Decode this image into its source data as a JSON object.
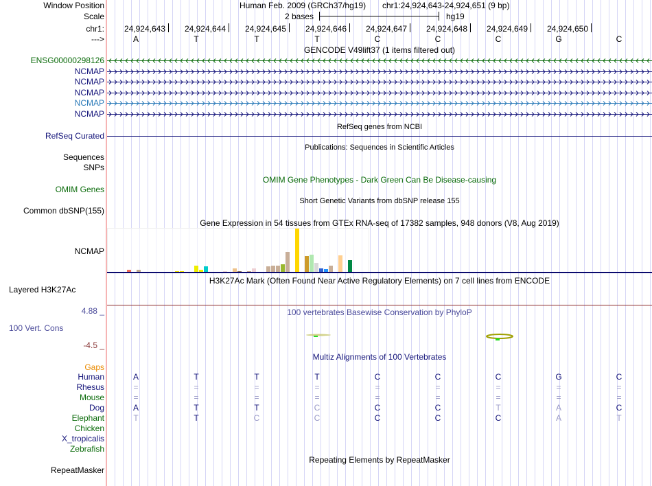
{
  "header": {
    "window_position_label": "Window Position",
    "assembly": "Human Feb. 2009 (GRCh37/hg19)",
    "position": "chr1:24,924,643-24,924,651 (9 bp)",
    "scale_label": "Scale",
    "scale_text": "2 bases",
    "scale_db": "hg19",
    "chrom_label": "chr1:",
    "strand_label": "--->",
    "coordinates": [
      "24,924,643",
      "24,924,644",
      "24,924,645",
      "24,924,646",
      "24,924,647",
      "24,924,648",
      "24,924,649",
      "24,924,650"
    ],
    "bases": [
      "A",
      "T",
      "T",
      "T",
      "C",
      "C",
      "C",
      "G",
      "C"
    ]
  },
  "gencode": {
    "title": "GENCODE V49lift37 (1 items filtered out)",
    "items": [
      {
        "label": "ENSG00000298126",
        "strand": "-",
        "color": "#0b6b0b"
      },
      {
        "label": "NCMAP",
        "strand": "+",
        "color": "#14147a"
      },
      {
        "label": "NCMAP",
        "strand": "+",
        "color": "#14147a"
      },
      {
        "label": "NCMAP",
        "strand": "+",
        "color": "#14147a"
      },
      {
        "label": "NCMAP",
        "strand": "+",
        "color": "#2a7ab8"
      },
      {
        "label": "NCMAP",
        "strand": "+",
        "color": "#14147a"
      }
    ]
  },
  "refseq": {
    "title": "RefSeq genes from NCBI",
    "label": "RefSeq Curated"
  },
  "publications": {
    "title": "Publications: Sequences in Scientific Articles",
    "label1": "Sequences",
    "label2": "SNPs"
  },
  "omim": {
    "title": "OMIM Gene Phenotypes - Dark Green Can Be Disease-causing",
    "label": "OMIM Genes"
  },
  "dbsnp": {
    "title": "Short Genetic Variants from dbSNP release 155",
    "label": "Common dbSNP(155)"
  },
  "gtex": {
    "title": "Gene Expression in 54 tissues from GTEx RNA-seq of 17382 samples, 948 donors (V8, Aug 2019)",
    "label": "NCMAP"
  },
  "h3k27ac": {
    "title": "H3K27Ac Mark (Often Found Near Active Regulatory Elements) on 7 cell lines from ENCODE",
    "label": "Layered H3K27Ac"
  },
  "phylop": {
    "title": "100 vertebrates Basewise Conservation by PhyloP",
    "label": "100 Vert. Cons",
    "max": "4.88 _",
    "min": "-4.5 _"
  },
  "multiz": {
    "title": "Multiz Alignments of 100 Vertebrates",
    "gaps_label": "Gaps",
    "species": [
      {
        "name": "Human",
        "color": "#14147a",
        "bases": "ATTTCCCGC",
        "strong": "111111111"
      },
      {
        "name": "Rhesus",
        "color": "#14147a",
        "bases": "=========",
        "strong": "000000000"
      },
      {
        "name": "Mouse",
        "color": "#0b6b0b",
        "bases": "=========",
        "strong": "000000000"
      },
      {
        "name": "Dog",
        "color": "#14147a",
        "bases": "ATTCCCTAC",
        "strong": "111011001"
      },
      {
        "name": "Elephant",
        "color": "#0b6b0b",
        "bases": "TTCCCCCAT",
        "strong": "010011100"
      },
      {
        "name": "Chicken",
        "color": "#0b6b0b",
        "bases": "",
        "strong": ""
      },
      {
        "name": "X_tropicalis",
        "color": "#14147a",
        "bases": "",
        "strong": ""
      },
      {
        "name": "Zebrafish",
        "color": "#0b6b0b",
        "bases": "",
        "strong": ""
      }
    ]
  },
  "repeatmasker": {
    "title": "Repeating Elements by RepeatMasker",
    "label": "RepeatMasker"
  },
  "chart_data": {
    "type": "bar",
    "title": "Gene Expression in 54 tissues from GTEx RNA-seq of 17382 samples, 948 donors (V8, Aug 2019)",
    "categories_count": 54,
    "values": [
      1,
      1,
      0,
      0,
      4,
      1,
      4,
      1,
      1,
      1,
      0,
      0,
      0,
      1,
      2,
      2,
      1,
      1,
      10,
      4,
      9,
      0,
      0,
      0,
      2,
      0,
      6,
      2,
      1,
      2,
      6,
      1,
      0,
      9,
      10,
      10,
      12,
      30,
      0,
      63,
      0,
      24,
      26,
      14,
      6,
      5,
      10,
      1,
      25,
      1,
      18,
      0,
      1,
      0
    ],
    "colors": [
      "#ff9900",
      "#ff9900",
      "#ccc",
      "#ccc",
      "#ef6a5a",
      "#ee0000",
      "#bfa890",
      "#f0e000",
      "#f0e000",
      "#f0e000",
      "#ccc",
      "#ccc",
      "#ccc",
      "#f0e000",
      "#f0e000",
      "#f0e000",
      "#f0e000",
      "#f0e000",
      "#eeee00",
      "#eeee00",
      "#00cccc",
      "#ccc",
      "#ccc",
      "#ccc",
      "#eed8d8",
      "#ccc",
      "#eec28a",
      "#8b7360",
      "#bfa890",
      "#c8a890",
      "#eed0d4",
      "#a040e0",
      "#ccc",
      "#c8ae98",
      "#c8ae98",
      "#c8ae98",
      "#9ab830",
      "#c8ae98",
      "#ccc",
      "#ffd700",
      "#ccc",
      "#cd9b2a",
      "#b0e8b0",
      "#d8d8d8",
      "#3060d0",
      "#1e90ff",
      "#c8ae98",
      "#ddd",
      "#ffcf90",
      "#999",
      "#008844",
      "#ccc",
      "#f0d8e0",
      "#ccc"
    ],
    "ylim": [
      0,
      63
    ]
  }
}
